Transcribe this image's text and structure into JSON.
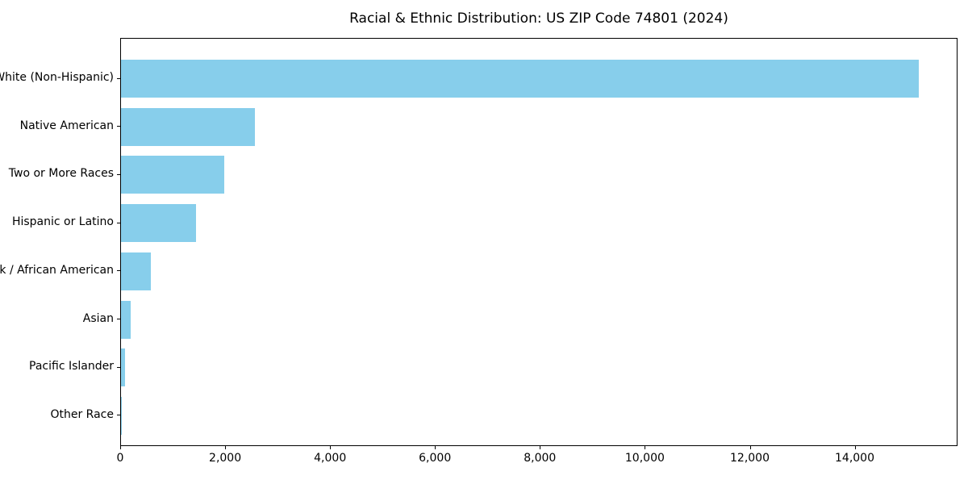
{
  "title": "Racial & Ethnic Distribution: US ZIP Code 74801 (2024)",
  "chart_data": {
    "type": "bar",
    "orientation": "horizontal",
    "title": "Racial & Ethnic Distribution: US ZIP Code 74801 (2024)",
    "xlabel": "",
    "ylabel": "",
    "categories": [
      "White (Non-Hispanic)",
      "Native American",
      "Two or More Races",
      "Hispanic or Latino",
      "Black / African American",
      "Asian",
      "Pacific Islander",
      "Other Race"
    ],
    "values": [
      15200,
      2550,
      1970,
      1430,
      570,
      190,
      70,
      10
    ],
    "xlim": [
      0,
      15960
    ],
    "xticks": [
      0,
      2000,
      4000,
      6000,
      8000,
      10000,
      12000,
      14000
    ],
    "xtick_labels": [
      "0",
      "2,000",
      "4,000",
      "6,000",
      "8,000",
      "10,000",
      "12,000",
      "14,000"
    ],
    "grid": false,
    "legend": false,
    "bar_color": "#87CEEB",
    "axis_color": "#000000",
    "text_color": "#000000",
    "background_color": "#ffffff"
  }
}
